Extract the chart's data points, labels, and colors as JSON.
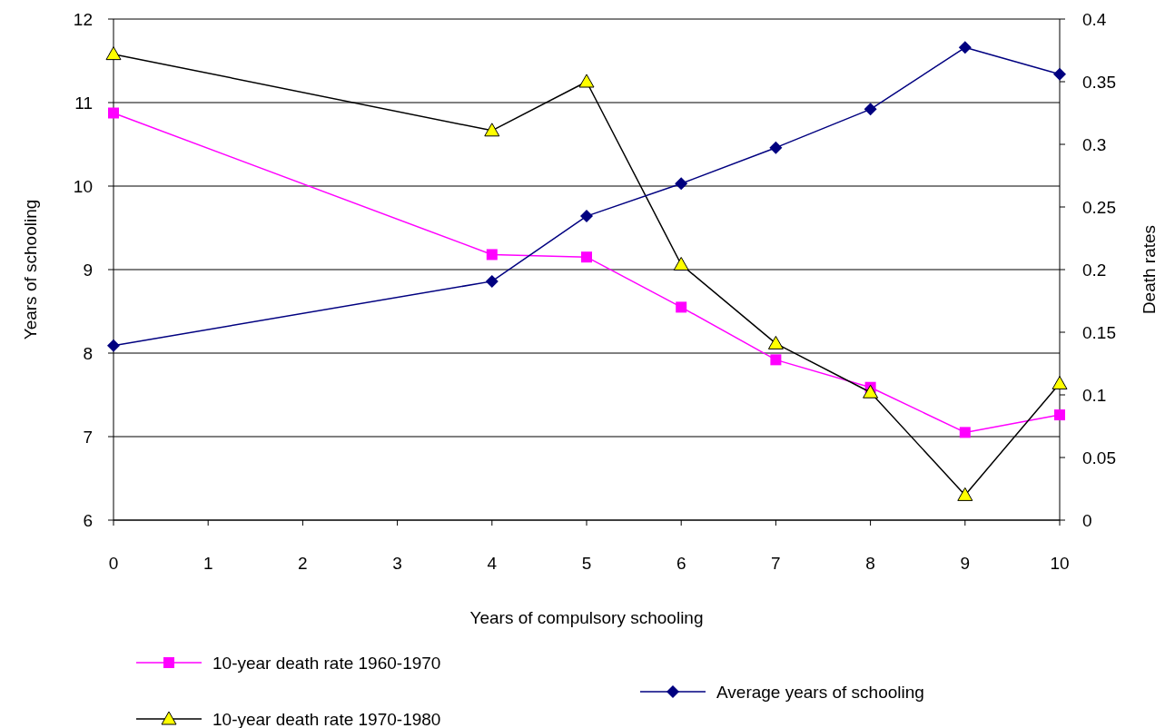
{
  "chart_data": {
    "type": "line",
    "xlabel": "Years of compulsory schooling",
    "ylabel": "Years of schooling",
    "y2label": "Death rates",
    "x": [
      0,
      4,
      5,
      6,
      7,
      8,
      9,
      10
    ],
    "xlim": [
      0,
      10
    ],
    "xticks": [
      0,
      1,
      2,
      3,
      4,
      5,
      6,
      7,
      8,
      9,
      10
    ],
    "ylim": [
      6,
      12
    ],
    "yticks": [
      6,
      7,
      8,
      9,
      10,
      11,
      12
    ],
    "y2lim": [
      0,
      0.4
    ],
    "y2ticks": [
      0,
      0.05,
      0.1,
      0.15,
      0.2,
      0.25,
      0.3,
      0.35,
      0.4
    ],
    "grid": "y",
    "legend": "bottom",
    "line_style": "solid",
    "series": [
      {
        "name": "10-year death rate 1960-1970",
        "color": "#ff00ff",
        "axis": "y2",
        "marker": "square",
        "values": [
          0.325,
          0.212,
          0.21,
          0.17,
          0.128,
          0.106,
          0.07,
          0.084
        ]
      },
      {
        "name": "10-year death rate 1970-1980",
        "color": "#000000",
        "axis": "y2",
        "marker": "triangle",
        "values": [
          0.372,
          0.311,
          0.35,
          0.204,
          0.141,
          0.102,
          0.02,
          0.109
        ]
      },
      {
        "name": "Average years of schooling",
        "color": "#000080",
        "marker": "diamond",
        "values": [
          8.09,
          8.86,
          9.64,
          10.03,
          10.46,
          10.92,
          11.66,
          11.34
        ]
      }
    ]
  }
}
